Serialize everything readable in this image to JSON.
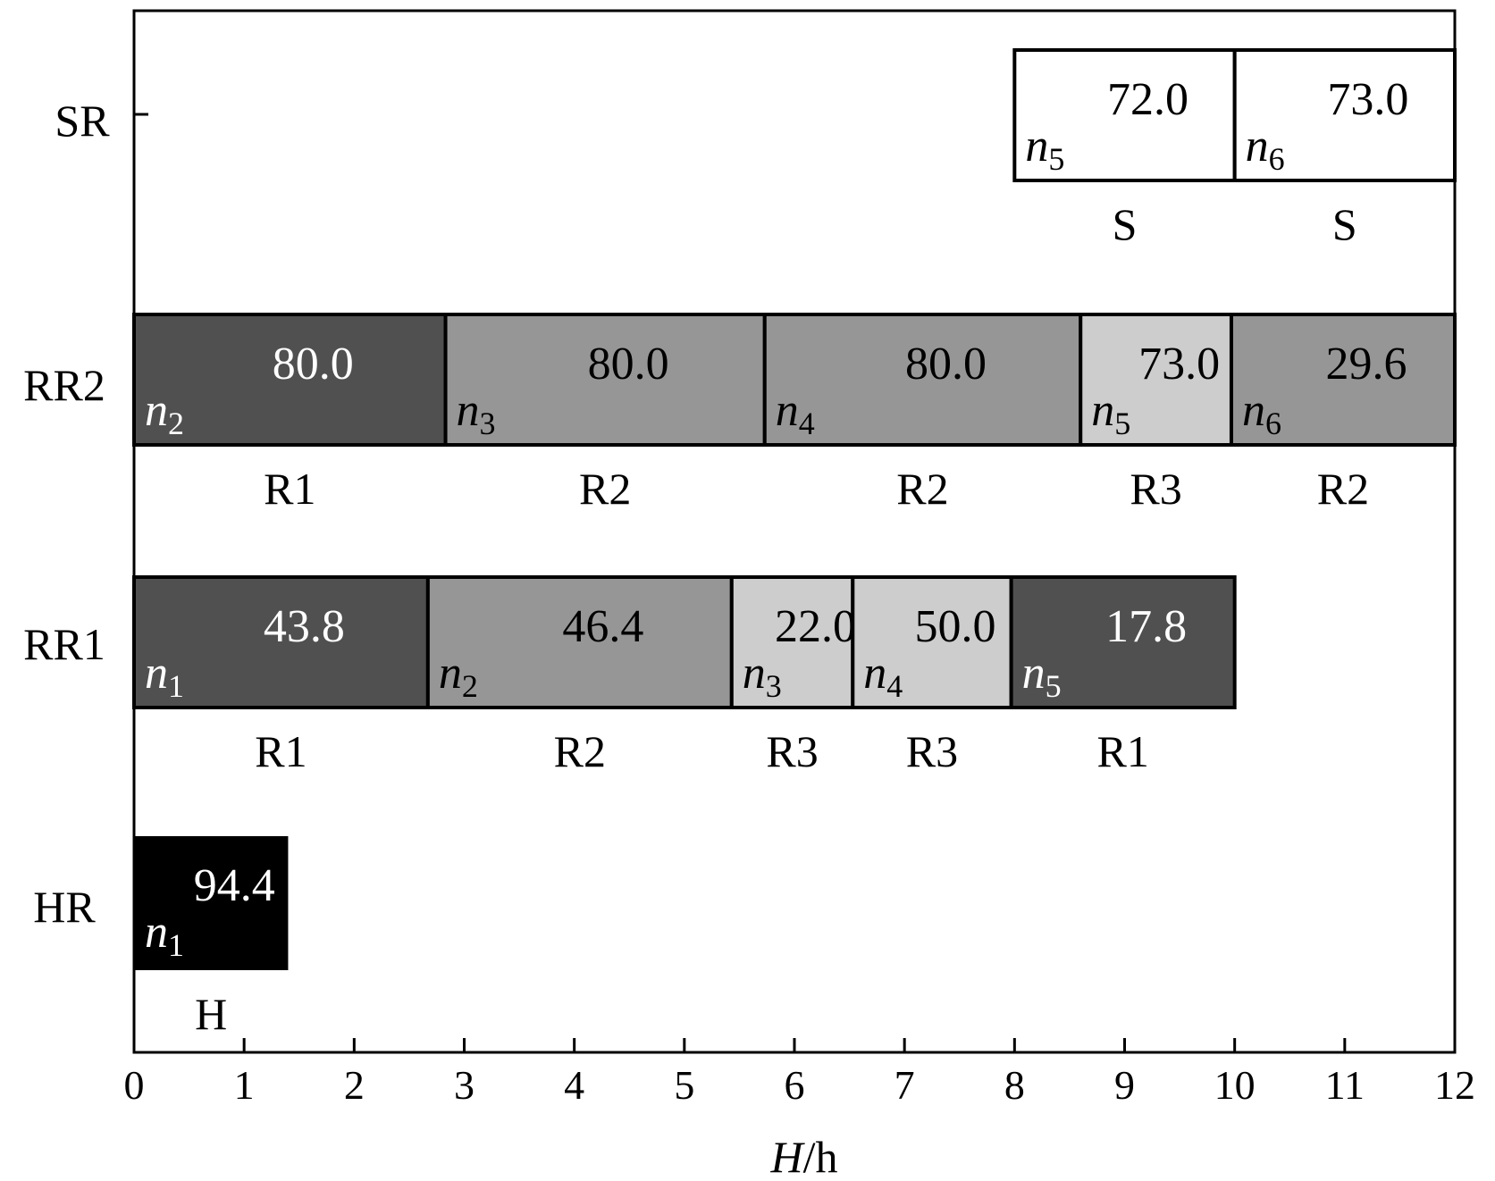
{
  "chart_data": {
    "type": "gantt",
    "xlabel_var": "H",
    "xlabel_unit": "/h",
    "xlim": [
      0,
      12
    ],
    "x_ticks": [
      "0",
      "1",
      "2",
      "3",
      "4",
      "5",
      "6",
      "7",
      "8",
      "9",
      "10",
      "11",
      "12"
    ],
    "rows": [
      "SR",
      "RR2",
      "RR1",
      "HR"
    ],
    "colors": {
      "H": "#000000",
      "R1": "#505050",
      "R2": "#969696",
      "R3": "#cdcdcd",
      "S": "#ffffff"
    },
    "tasks": [
      {
        "row": "SR",
        "start": 8.0,
        "end": 10.0,
        "ship": "n",
        "ship_sub": "5",
        "value": "72.0",
        "mode": "S"
      },
      {
        "row": "SR",
        "start": 10.0,
        "end": 12.0,
        "ship": "n",
        "ship_sub": "6",
        "value": "73.0",
        "mode": "S"
      },
      {
        "row": "RR2",
        "start": 0.0,
        "end": 2.83,
        "ship": "n",
        "ship_sub": "2",
        "value": "80.0",
        "mode": "R1"
      },
      {
        "row": "RR2",
        "start": 2.83,
        "end": 5.73,
        "ship": "n",
        "ship_sub": "3",
        "value": "80.0",
        "mode": "R2"
      },
      {
        "row": "RR2",
        "start": 5.73,
        "end": 8.6,
        "ship": "n",
        "ship_sub": "4",
        "value": "80.0",
        "mode": "R2"
      },
      {
        "row": "RR2",
        "start": 8.6,
        "end": 9.97,
        "ship": "n",
        "ship_sub": "5",
        "value": "73.0",
        "mode": "R3"
      },
      {
        "row": "RR2",
        "start": 9.97,
        "end": 12.0,
        "ship": "n",
        "ship_sub": "6",
        "value": "29.6",
        "mode": "R2"
      },
      {
        "row": "RR1",
        "start": 0.0,
        "end": 2.67,
        "ship": "n",
        "ship_sub": "1",
        "value": "43.8",
        "mode": "R1"
      },
      {
        "row": "RR1",
        "start": 2.67,
        "end": 5.43,
        "ship": "n",
        "ship_sub": "2",
        "value": "46.4",
        "mode": "R2"
      },
      {
        "row": "RR1",
        "start": 5.43,
        "end": 6.53,
        "ship": "n",
        "ship_sub": "3",
        "value": "22.0",
        "mode": "R3"
      },
      {
        "row": "RR1",
        "start": 6.53,
        "end": 7.97,
        "ship": "n",
        "ship_sub": "4",
        "value": "50.0",
        "mode": "R3"
      },
      {
        "row": "RR1",
        "start": 7.97,
        "end": 10.0,
        "ship": "n",
        "ship_sub": "5",
        "value": "17.8",
        "mode": "R1"
      },
      {
        "row": "HR",
        "start": 0.0,
        "end": 1.4,
        "ship": "n",
        "ship_sub": "1",
        "value": "94.4",
        "mode": "H"
      }
    ]
  }
}
